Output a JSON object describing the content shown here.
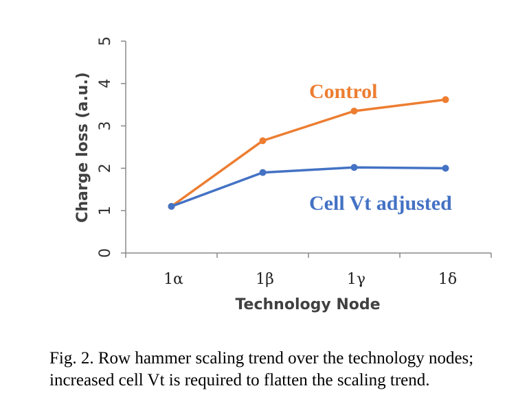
{
  "chart_data": {
    "type": "line",
    "categories": [
      "1α",
      "1β",
      "1γ",
      "1δ"
    ],
    "series": [
      {
        "name": "Control",
        "values": [
          1.1,
          2.65,
          3.35,
          3.62
        ],
        "color": "#ED7D31"
      },
      {
        "name": "Cell Vt adjusted",
        "values": [
          1.1,
          1.9,
          2.02,
          2.0
        ],
        "color": "#4472C4"
      }
    ],
    "xlabel": "Technology Node",
    "ylabel": "Charge loss (a.u.)",
    "ylim": [
      0,
      5
    ],
    "yticks": [
      0,
      1,
      2,
      3,
      4,
      5
    ],
    "grid": false,
    "legend": "inline-labels"
  },
  "caption": {
    "line1": "Fig. 2. Row hammer scaling trend over the technology nodes;",
    "line2": "increased cell Vt is required to flatten the scaling trend."
  }
}
